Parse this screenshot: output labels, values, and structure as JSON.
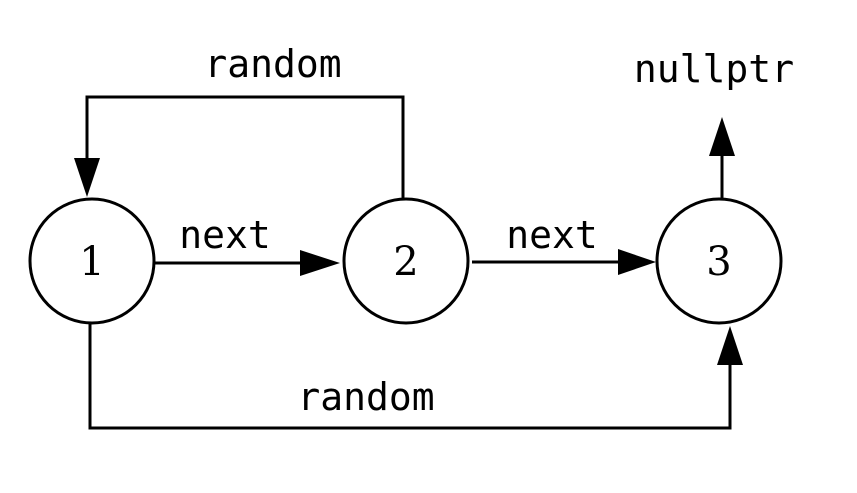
{
  "nodes": [
    {
      "id": "n1",
      "label": "1"
    },
    {
      "id": "n2",
      "label": "2"
    },
    {
      "id": "n3",
      "label": "3"
    }
  ],
  "edges": [
    {
      "from": "n1",
      "to": "n2",
      "label": "next"
    },
    {
      "from": "n2",
      "to": "n3",
      "label": "next"
    },
    {
      "from": "n2",
      "to": "n1",
      "label": "random"
    },
    {
      "from": "n1",
      "to": "n3",
      "label": "random"
    },
    {
      "from": "n3",
      "to": "nullptr",
      "label": ""
    }
  ],
  "terminals": {
    "nullptr": "nullptr"
  },
  "colors": {
    "stroke": "#000000",
    "background": "#ffffff"
  }
}
